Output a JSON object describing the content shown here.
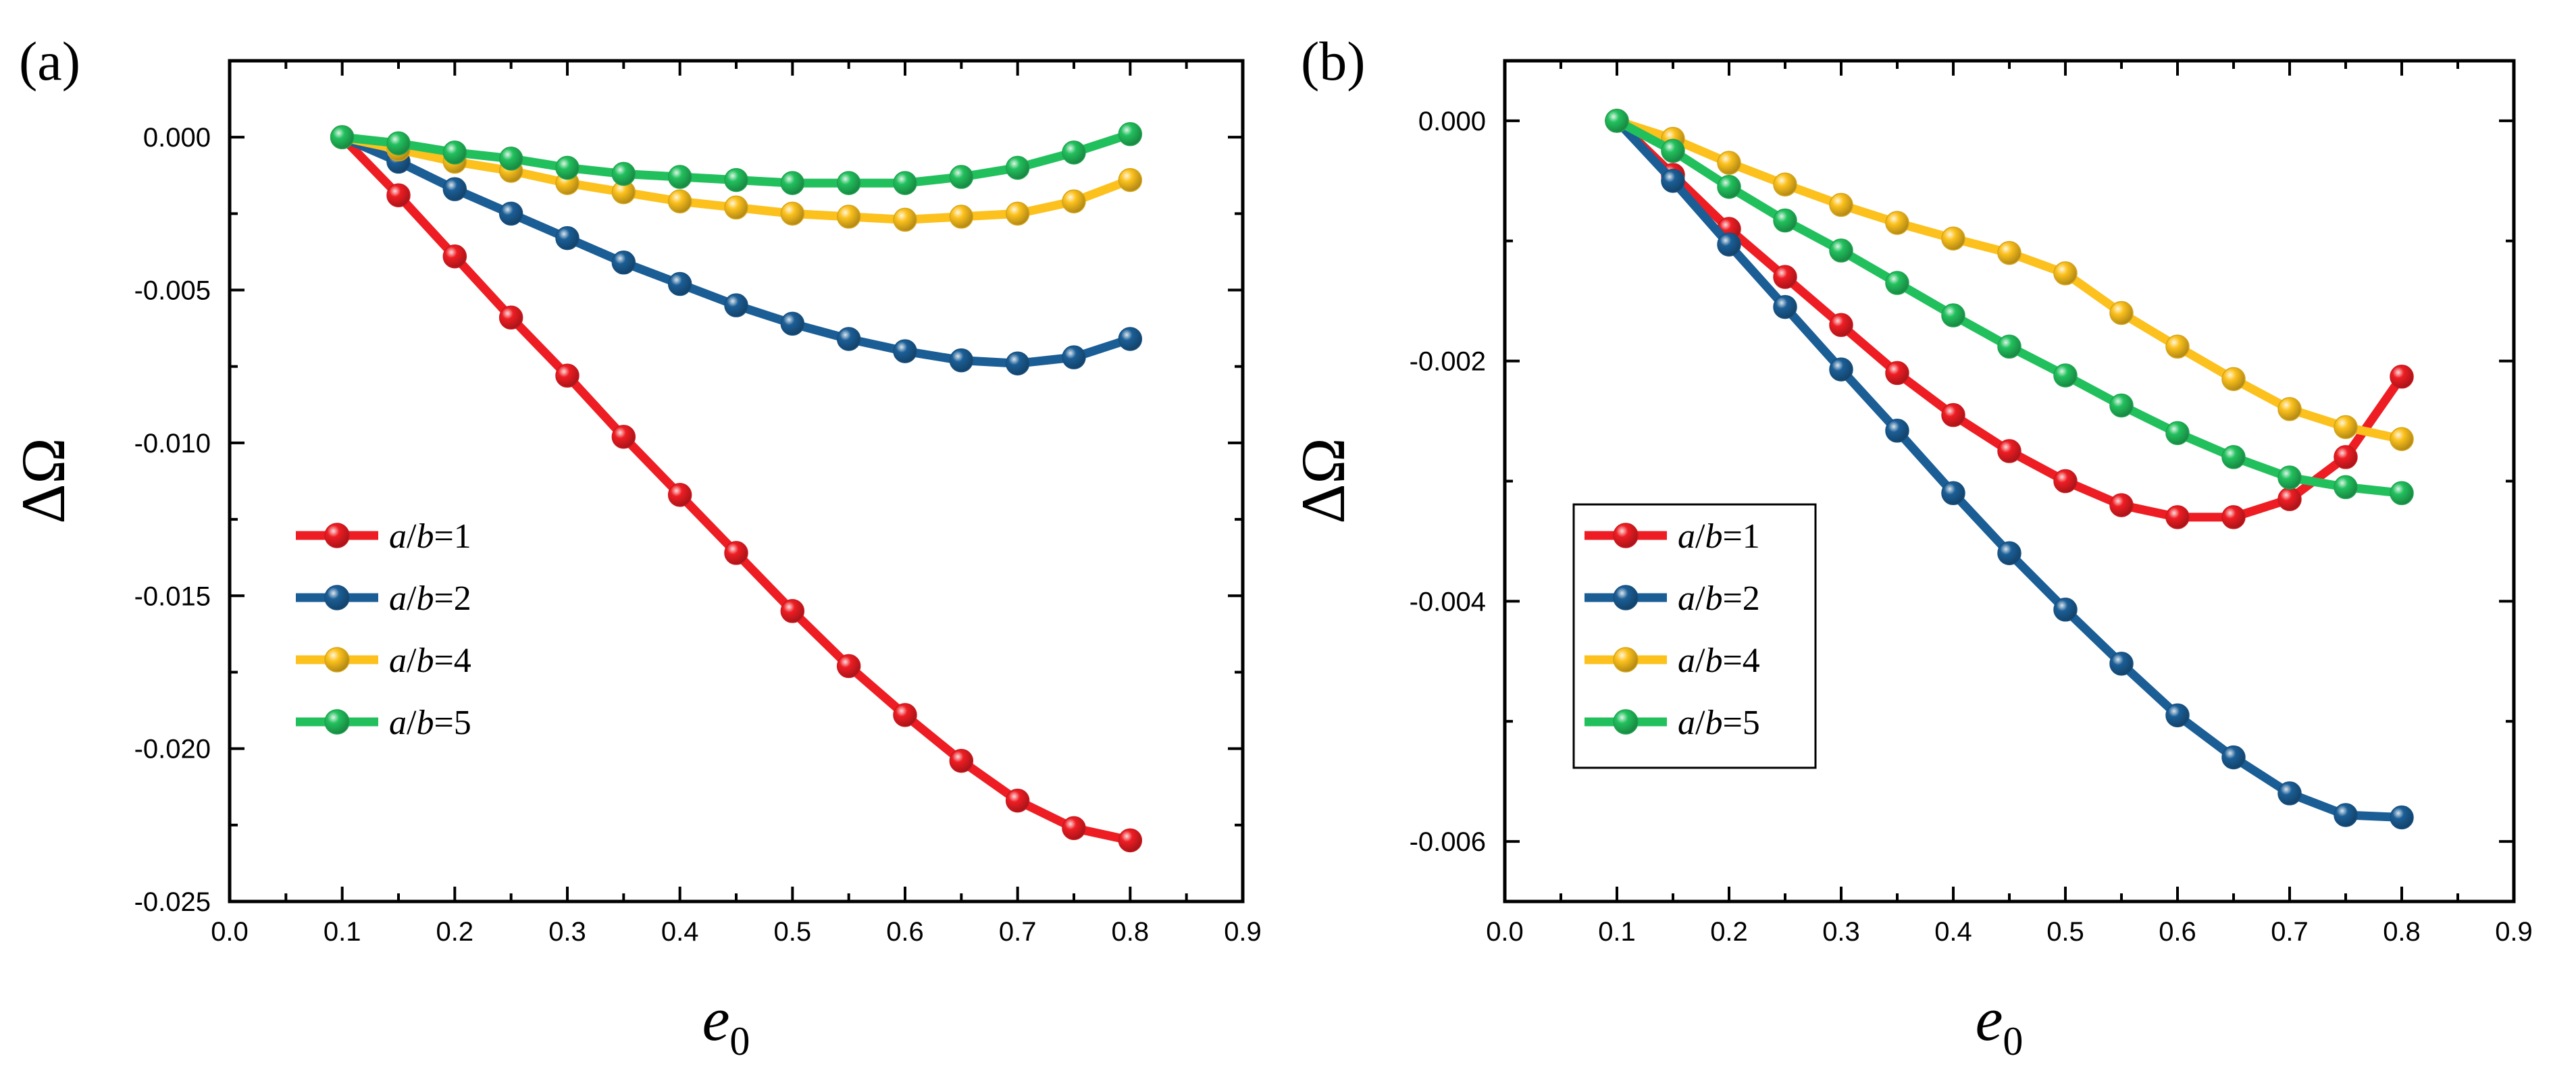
{
  "series_colors": [
    "#ee1d23",
    "#1b5e96",
    "#fcc11d",
    "#22c05d"
  ],
  "chart_data": [
    {
      "type": "line",
      "panel_label": "(a)",
      "xlabel_base": "e",
      "xlabel_sub": "0",
      "ylabel": "ΔΩ",
      "xlim": [
        0.0,
        0.9
      ],
      "ylim": [
        -0.025,
        0.0025
      ],
      "xticks": [
        0.0,
        0.1,
        0.2,
        0.3,
        0.4,
        0.5,
        0.6,
        0.7,
        0.8,
        0.9
      ],
      "xtick_labels": [
        "0.0",
        "0.1",
        "0.2",
        "0.3",
        "0.4",
        "0.5",
        "0.6",
        "0.7",
        "0.8",
        "0.9"
      ],
      "yticks": [
        0.0,
        -0.005,
        -0.01,
        -0.015,
        -0.02,
        -0.025
      ],
      "ytick_labels": [
        "0.000",
        "-0.005",
        "-0.010",
        "-0.015",
        "-0.020",
        "-0.025"
      ],
      "legend_position": "bottom-left",
      "legend_box": false,
      "x": [
        0.1,
        0.15,
        0.2,
        0.25,
        0.3,
        0.35,
        0.4,
        0.45,
        0.5,
        0.55,
        0.6,
        0.65,
        0.7,
        0.75,
        0.8
      ],
      "series": [
        {
          "name": "a/b=1",
          "label_a": "a",
          "label_b": "b",
          "label_value": "=1",
          "values": [
            0.0,
            -0.0019,
            -0.0039,
            -0.0059,
            -0.0078,
            -0.0098,
            -0.0117,
            -0.0136,
            -0.0155,
            -0.0173,
            -0.0189,
            -0.0204,
            -0.0217,
            -0.0226,
            -0.023
          ]
        },
        {
          "name": "a/b=2",
          "label_a": "a",
          "label_b": "b",
          "label_value": "=2",
          "values": [
            0.0,
            -0.0008,
            -0.0017,
            -0.0025,
            -0.0033,
            -0.0041,
            -0.0048,
            -0.0055,
            -0.0061,
            -0.0066,
            -0.007,
            -0.0073,
            -0.0074,
            -0.0072,
            -0.0066
          ]
        },
        {
          "name": "a/b=4",
          "label_a": "a",
          "label_b": "b",
          "label_value": "=4",
          "values": [
            0.0,
            -0.0004,
            -0.0008,
            -0.0011,
            -0.0015,
            -0.0018,
            -0.0021,
            -0.0023,
            -0.0025,
            -0.0026,
            -0.0027,
            -0.0026,
            -0.0025,
            -0.0021,
            -0.0014
          ]
        },
        {
          "name": "a/b=5",
          "label_a": "a",
          "label_b": "b",
          "label_value": "=5",
          "values": [
            0.0,
            -0.0002,
            -0.0005,
            -0.0007,
            -0.001,
            -0.0012,
            -0.0013,
            -0.0014,
            -0.0015,
            -0.0015,
            -0.0015,
            -0.0013,
            -0.001,
            -0.0005,
            0.0001
          ]
        }
      ]
    },
    {
      "type": "line",
      "panel_label": "(b)",
      "xlabel_base": "e",
      "xlabel_sub": "0",
      "ylabel": "ΔΩ",
      "xlim": [
        0.0,
        0.9
      ],
      "ylim": [
        -0.0065,
        0.0005
      ],
      "xticks": [
        0.0,
        0.1,
        0.2,
        0.3,
        0.4,
        0.5,
        0.6,
        0.7,
        0.8,
        0.9
      ],
      "xtick_labels": [
        "0.0",
        "0.1",
        "0.2",
        "0.3",
        "0.4",
        "0.5",
        "0.6",
        "0.7",
        "0.8",
        "0.9"
      ],
      "yticks": [
        0.0,
        -0.002,
        -0.004,
        -0.006
      ],
      "ytick_labels": [
        "0.000",
        "-0.002",
        "-0.004",
        "-0.006"
      ],
      "legend_position": "lower-left",
      "legend_box": true,
      "x": [
        0.1,
        0.15,
        0.2,
        0.25,
        0.3,
        0.35,
        0.4,
        0.45,
        0.5,
        0.55,
        0.6,
        0.65,
        0.7,
        0.75,
        0.8
      ],
      "series": [
        {
          "name": "a/b=1",
          "label_a": "a",
          "label_b": "b",
          "label_value": "=1",
          "values": [
            0.0,
            -0.00045,
            -0.0009,
            -0.0013,
            -0.0017,
            -0.0021,
            -0.00245,
            -0.00275,
            -0.003,
            -0.0032,
            -0.0033,
            -0.0033,
            -0.00315,
            -0.0028,
            -0.00213
          ]
        },
        {
          "name": "a/b=2",
          "label_a": "a",
          "label_b": "b",
          "label_value": "=2",
          "values": [
            0.0,
            -0.0005,
            -0.00103,
            -0.00155,
            -0.00207,
            -0.00258,
            -0.0031,
            -0.0036,
            -0.00407,
            -0.00452,
            -0.00495,
            -0.0053,
            -0.0056,
            -0.00578,
            -0.0058
          ]
        },
        {
          "name": "a/b=4",
          "label_a": "a",
          "label_b": "b",
          "label_value": "=4",
          "values": [
            0.0,
            -0.00015,
            -0.00035,
            -0.00053,
            -0.0007,
            -0.00085,
            -0.00098,
            -0.0011,
            -0.00127,
            -0.0016,
            -0.00188,
            -0.00215,
            -0.0024,
            -0.00255,
            -0.00265
          ]
        },
        {
          "name": "a/b=5",
          "label_a": "a",
          "label_b": "b",
          "label_value": "=5",
          "values": [
            0.0,
            -0.00025,
            -0.00055,
            -0.00083,
            -0.00108,
            -0.00135,
            -0.00162,
            -0.00188,
            -0.00212,
            -0.00237,
            -0.0026,
            -0.0028,
            -0.00297,
            -0.00305,
            -0.0031
          ]
        }
      ]
    }
  ]
}
